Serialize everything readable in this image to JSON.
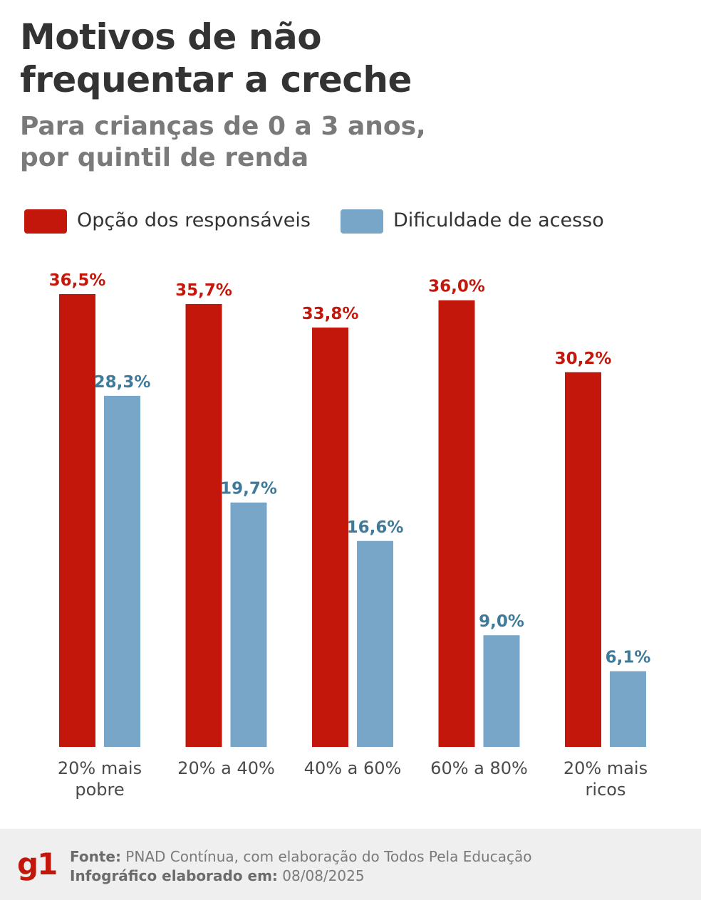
{
  "header": {
    "title_line1": "Motivos de não",
    "title_line2": "frequentar a creche",
    "subtitle_line1": "Para crianças de 0 a 3 anos,",
    "subtitle_line2": "por quintil de renda"
  },
  "colors": {
    "series_red": "#c4170c",
    "series_blue": "#78a6c8",
    "label_red": "#c4170c",
    "label_blue": "#3e7a99",
    "axis_text": "#4a4a4a"
  },
  "chart_data": {
    "type": "bar",
    "title": "Motivos de não frequentar a creche",
    "subtitle": "Para crianças de 0 a 3 anos, por quintil de renda",
    "xlabel": "",
    "ylabel": "",
    "ylim": [
      0,
      36.5
    ],
    "grid": false,
    "legend_position": "top",
    "categories": [
      [
        "20% mais",
        "pobre"
      ],
      [
        "20% a 40%"
      ],
      [
        "40% a 60%"
      ],
      [
        "60% a 80%"
      ],
      [
        "20% mais",
        "ricos"
      ]
    ],
    "series": [
      {
        "name": "Opção dos responsáveis",
        "values": [
          36.5,
          35.7,
          33.8,
          36.0,
          30.2
        ],
        "labels": [
          "36,5%",
          "35,7%",
          "33,8%",
          "36,0%",
          "30,2%"
        ]
      },
      {
        "name": "Dificuldade de acesso",
        "values": [
          28.3,
          19.7,
          16.6,
          9.0,
          6.1
        ],
        "labels": [
          "28,3%",
          "19,7%",
          "16,6%",
          "9,0%",
          "6,1%"
        ]
      }
    ]
  },
  "footer": {
    "logo": "g1",
    "source_label": "Fonte:",
    "source_text": " PNAD Contínua, com elaboração do Todos Pela Educação",
    "date_label": "Infográfico elaborado em:",
    "date_text": " 08/08/2025"
  }
}
